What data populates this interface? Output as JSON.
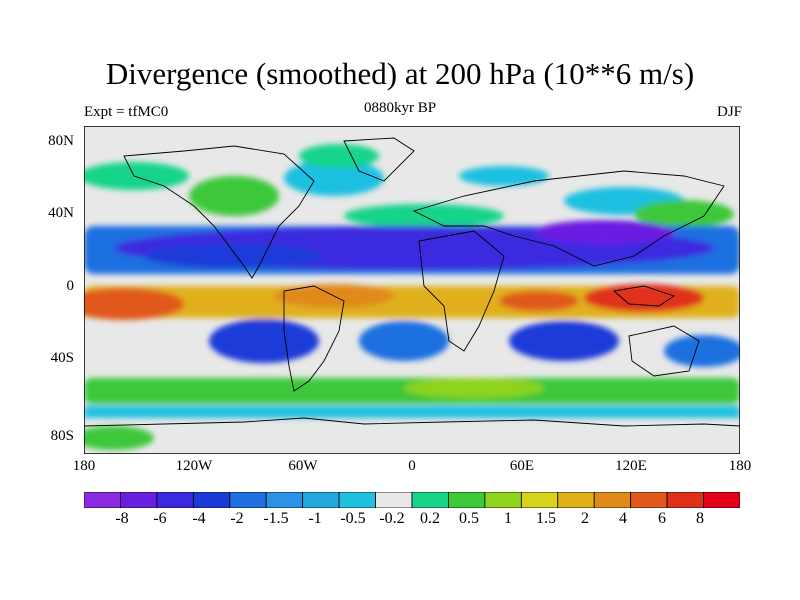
{
  "title": "Divergence (smoothed) at 200 hPa (10**6 m/s)",
  "subtitles": {
    "left": "Expt = tfMC0",
    "center": "0880kyr BP",
    "right": "DJF"
  },
  "axes": {
    "y_ticks": [
      "80N",
      "40N",
      "0",
      "40S",
      "80S"
    ],
    "x_ticks": [
      "180",
      "120W",
      "60W",
      "0",
      "60E",
      "120E",
      "180"
    ]
  },
  "colorbar": {
    "colors": [
      "#8a2be2",
      "#6a1ee0",
      "#3b2be0",
      "#1a3ad8",
      "#1f6fe0",
      "#2a93e6",
      "#22a8de",
      "#1fc0e0",
      "#e8e8e8",
      "#18d48a",
      "#3dc83a",
      "#8ed31d",
      "#d6d31a",
      "#e0b01a",
      "#e08a1a",
      "#e0581a",
      "#e0301a",
      "#e3001a"
    ],
    "labels": [
      "-8",
      "-6",
      "-4",
      "-2",
      "-1.5",
      "-1",
      "-0.5",
      "-0.2",
      "0.2",
      "0.5",
      "1",
      "1.5",
      "2",
      "4",
      "6",
      "8"
    ]
  }
}
